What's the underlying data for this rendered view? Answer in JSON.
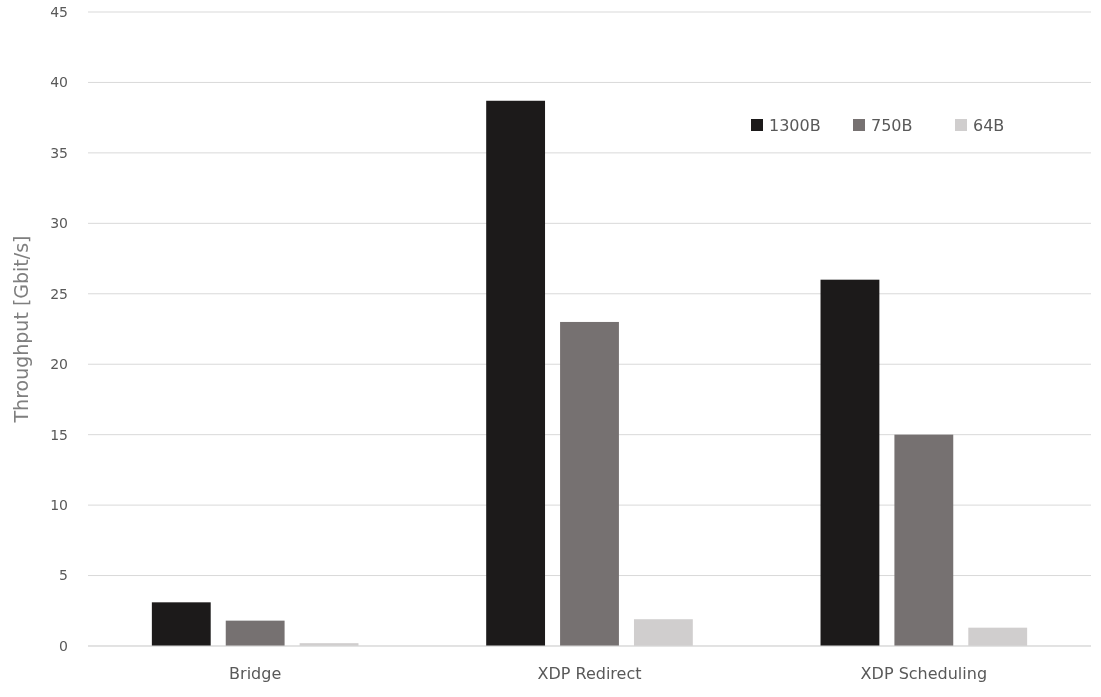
{
  "chart_data": {
    "type": "bar",
    "ylabel": "Throughput [Gbit/s]",
    "categories": [
      "Bridge",
      "XDP Redirect",
      "XDP Scheduling"
    ],
    "series": [
      {
        "name": "1300B",
        "color": "#1c1a1a",
        "values": [
          3.1,
          38.7,
          26
        ]
      },
      {
        "name": "750B",
        "color": "#767171",
        "values": [
          1.8,
          23,
          15
        ]
      },
      {
        "name": "64B",
        "color": "#d0cece",
        "values": [
          0.2,
          1.9,
          1.3
        ]
      }
    ],
    "ylim": [
      0,
      45
    ],
    "yticks": [
      0,
      5,
      10,
      15,
      20,
      25,
      30,
      35,
      40,
      45
    ],
    "grid": "y",
    "legend": "top right"
  }
}
